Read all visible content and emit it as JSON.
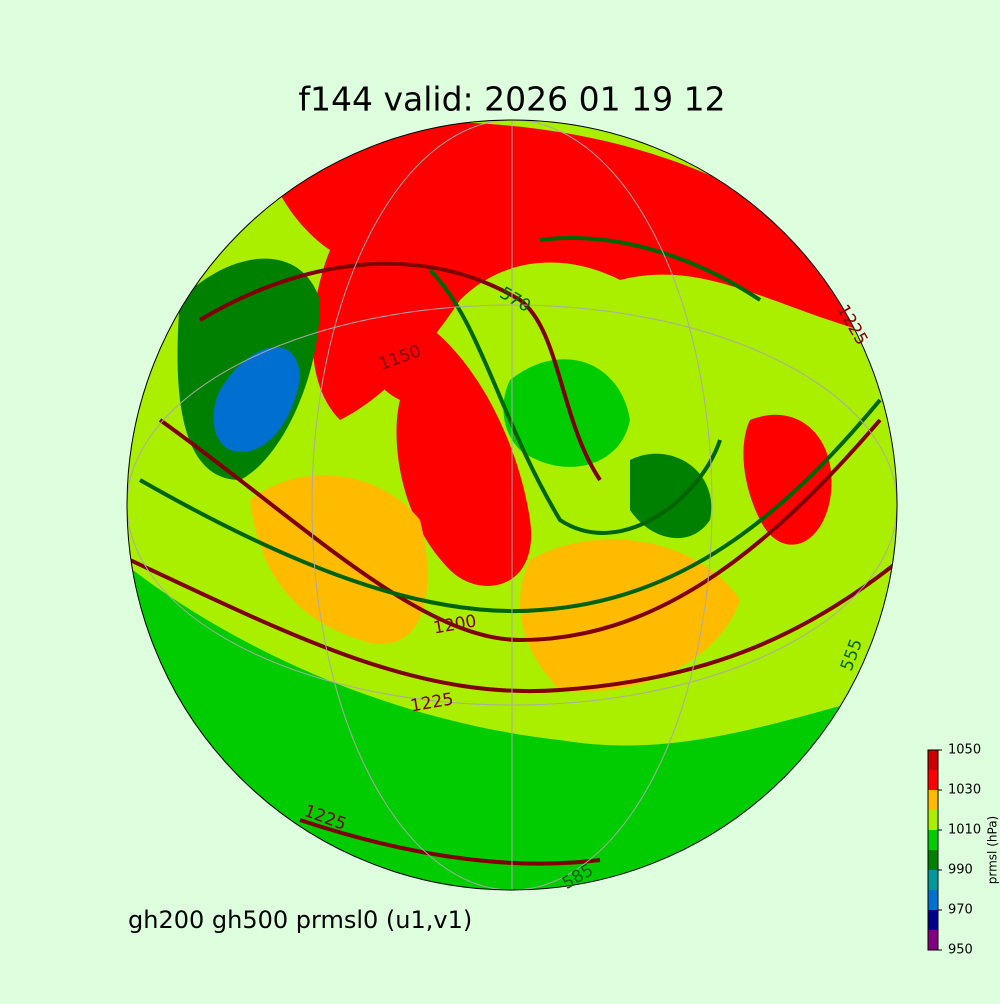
{
  "title": "f144 valid:   2026 01 19 12",
  "subtitle": "gh200 gh500 prmsl0 (u1,v1)",
  "colorbar": {
    "label": "prmsl (hPa)",
    "levels": [
      950,
      960,
      970,
      980,
      990,
      1000,
      1010,
      1020,
      1030,
      1040,
      1050
    ],
    "colors": [
      "#800080",
      "#00008b",
      "#0070d0",
      "#009999",
      "#008000",
      "#00cc00",
      "#aaee00",
      "#ffbb00",
      "#ff0000",
      "#cc0000"
    ],
    "ticks": [
      950,
      970,
      990,
      1010,
      1030,
      1050
    ]
  },
  "contour_labels": [
    "1200",
    "1225",
    "1225",
    "1225",
    "585",
    "555",
    "570",
    "1150"
  ]
}
